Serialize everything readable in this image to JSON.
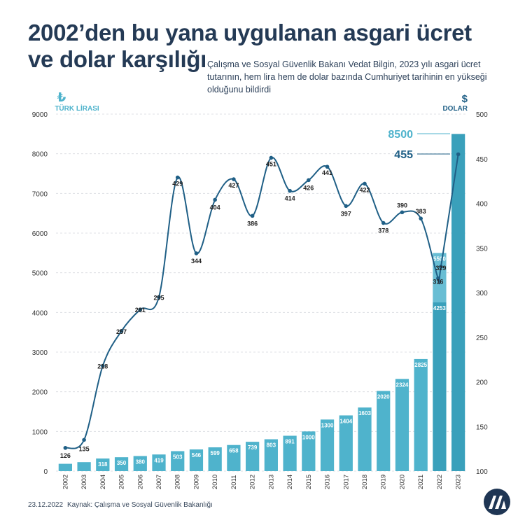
{
  "header": {
    "title_line1": "2002’den bu yana uygulanan asgari ücret",
    "title_line2": "ve dolar karşılığı",
    "subtitle": "Çalışma ve Sosyal Güvenlik Bakanı Vedat Bilgin, 2023 yılı asgari ücret tutarının, hem lira hem de dolar bazında Cumhuriyet tarihinin en yükseği olduğunu bildirdi"
  },
  "footer": {
    "date": "23.12.2022",
    "source": "Kaynak: Çalışma ve Sosyal Güvenlik Bakanlığı"
  },
  "logo": {
    "icon": "aa-logo-icon",
    "color": "#1f3654"
  },
  "colors": {
    "bar": "#4fb3cc",
    "bar_dark": "#3aa0bb",
    "line": "#1f5f86",
    "title": "#243a55",
    "accent": "#4fb3cc"
  },
  "chart_data": {
    "type": "bar+line",
    "categories": [
      "2002",
      "2003",
      "2004",
      "2005",
      "2006",
      "2007",
      "2008",
      "2009",
      "2010",
      "2011",
      "2012",
      "2013",
      "2014",
      "2015",
      "2016",
      "2017",
      "2018",
      "2019",
      "2020",
      "2021",
      "2022",
      "2023"
    ],
    "left_axis": {
      "label": "TÜRK LİRASI",
      "symbol": "₺",
      "ylim": [
        0,
        9000
      ],
      "ticks": [
        0,
        1000,
        2000,
        3000,
        4000,
        5000,
        6000,
        7000,
        8000,
        9000
      ]
    },
    "right_axis": {
      "label": "DOLAR",
      "symbol": "$",
      "ylim": [
        100,
        500
      ],
      "ticks": [
        100,
        150,
        200,
        250,
        300,
        350,
        400,
        450,
        500
      ]
    },
    "series": [
      {
        "axis": "left",
        "kind": "bar",
        "values": [
          184,
          226,
          318,
          350,
          380,
          419,
          503,
          546,
          599,
          658,
          739,
          803,
          891,
          1000,
          1300,
          1404,
          1603,
          2020,
          2324,
          2825,
          4253,
          8500
        ],
        "labels": [
          "",
          "",
          "318",
          "350",
          "380",
          "419",
          "503",
          "546",
          "599",
          "658",
          "739",
          "803",
          "891",
          "1000",
          "1300",
          "1404",
          "1603",
          "2020",
          "2324",
          "2825",
          "4253",
          ""
        ]
      },
      {
        "axis": "left",
        "kind": "bar-extra",
        "category": "2022",
        "value": 5500,
        "label": "5500"
      },
      {
        "axis": "right",
        "kind": "line",
        "points": [
          {
            "x": "2002",
            "y": 126
          },
          {
            "x": "2003",
            "y": 135
          },
          {
            "x": "2004",
            "y": 218
          },
          {
            "x": "2005",
            "y": 257
          },
          {
            "x": "2006",
            "y": 281
          },
          {
            "x": "2007",
            "y": 295
          },
          {
            "x": "2008",
            "y": 429
          },
          {
            "x": "2009",
            "y": 344
          },
          {
            "x": "2010",
            "y": 404
          },
          {
            "x": "2011",
            "y": 427
          },
          {
            "x": "2012",
            "y": 386
          },
          {
            "x": "2013",
            "y": 451
          },
          {
            "x": "2014",
            "y": 414
          },
          {
            "x": "2015",
            "y": 426
          },
          {
            "x": "2016",
            "y": 441
          },
          {
            "x": "2017",
            "y": 397
          },
          {
            "x": "2018",
            "y": 422
          },
          {
            "x": "2019",
            "y": 378
          },
          {
            "x": "2020",
            "y": 390
          },
          {
            "x": "2021",
            "y": 383
          },
          {
            "x": "2022",
            "y": 316
          },
          {
            "x": "2022",
            "y": 329
          },
          {
            "x": "2023",
            "y": 455
          }
        ],
        "labels": [
          "126",
          "135",
          "218",
          "257",
          "281",
          "295",
          "429",
          "344",
          "404",
          "427",
          "386",
          "451",
          "414",
          "426",
          "441",
          "397",
          "422",
          "378",
          "390",
          "383",
          "316",
          "329",
          "455"
        ]
      }
    ],
    "callouts": {
      "bar_2023": "8500",
      "line_2023": "455"
    },
    "grid": true
  }
}
